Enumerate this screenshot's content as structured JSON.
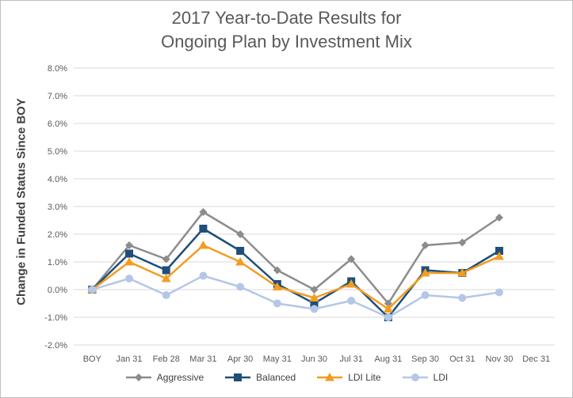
{
  "chart_data": {
    "type": "line",
    "title_line1": "2017 Year-to-Date Results for",
    "title_line2": "Ongoing Plan by Investment Mix",
    "ylabel": "Change in Funded Status Since BOY",
    "xlabel": "",
    "categories": [
      "BOY",
      "Jan 31",
      "Feb 28",
      "Mar 31",
      "Apr 30",
      "May 31",
      "Jun 30",
      "Jul 31",
      "Aug 31",
      "Sep 30",
      "Oct 31",
      "Nov 30",
      "Dec 31"
    ],
    "ylim": [
      -2.0,
      8.0
    ],
    "yticks": [
      "8.0%",
      "7.0%",
      "6.0%",
      "5.0%",
      "4.0%",
      "3.0%",
      "2.0%",
      "1.0%",
      "0.0%",
      "-1.0%",
      "-2.0%"
    ],
    "grid": true,
    "legend_position": "bottom",
    "series": [
      {
        "name": "Aggressive",
        "color": "#8c8c8c",
        "marker": "diamond",
        "values": [
          0.0,
          1.6,
          1.1,
          2.8,
          2.0,
          0.7,
          0.0,
          1.1,
          -0.5,
          1.6,
          1.7,
          2.6,
          null
        ]
      },
      {
        "name": "Balanced",
        "color": "#1f4e79",
        "marker": "square",
        "values": [
          0.0,
          1.3,
          0.7,
          2.2,
          1.4,
          0.2,
          -0.5,
          0.3,
          -1.0,
          0.7,
          0.6,
          1.4,
          null
        ]
      },
      {
        "name": "LDI Lite",
        "color": "#f39c1f",
        "marker": "triangle",
        "values": [
          0.0,
          1.0,
          0.4,
          1.6,
          1.0,
          0.1,
          -0.3,
          0.2,
          -0.7,
          0.6,
          0.6,
          1.2,
          null
        ]
      },
      {
        "name": "LDI",
        "color": "#b4c7e7",
        "marker": "circle",
        "values": [
          0.0,
          0.4,
          -0.2,
          0.5,
          0.1,
          -0.5,
          -0.7,
          -0.4,
          -1.0,
          -0.2,
          -0.3,
          -0.1,
          null
        ]
      }
    ]
  }
}
